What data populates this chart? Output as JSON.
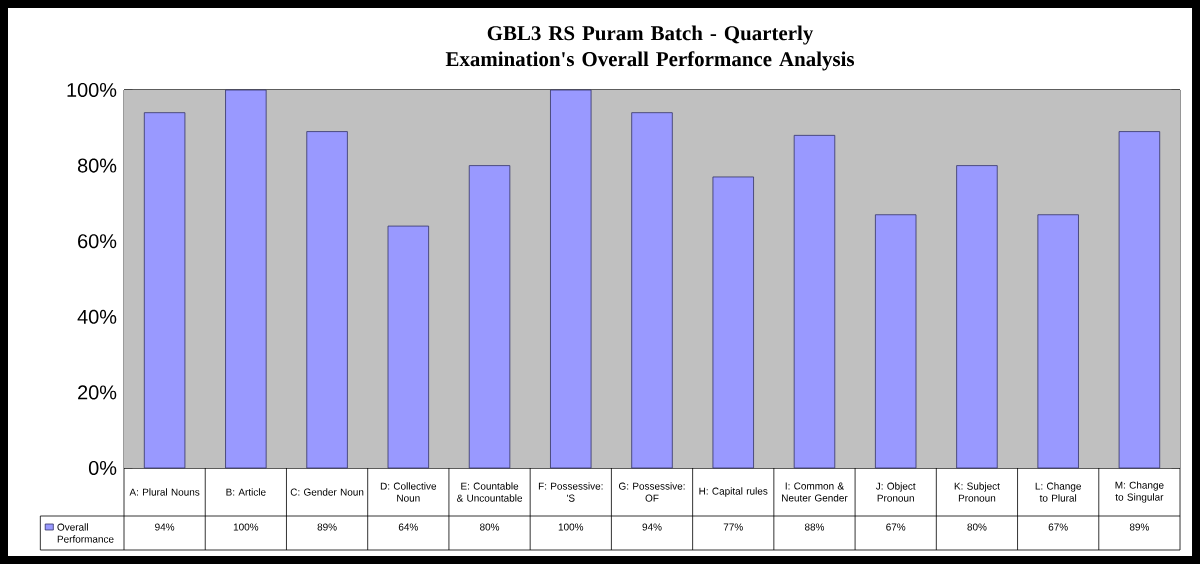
{
  "chart_data": {
    "type": "bar",
    "title": "GBL3 RS Puram Batch - Quarterly Examination's Overall Performance Analysis",
    "categories": [
      "A: Plural Nouns",
      "B: Article",
      "C: Gender Noun",
      "D: Collective Noun",
      "E: Countable & Uncountable",
      "F: Possessive: 'S",
      "G: Possessive: OF",
      "H: Capital rules",
      "I: Common & Neuter Gender",
      "J: Object Pronoun",
      "K: Subject Pronoun",
      "L: Change to Plural",
      "M: Change to Singular"
    ],
    "series": [
      {
        "name": "Overall Performance",
        "color": "#9999ff",
        "values": [
          94,
          100,
          89,
          64,
          80,
          100,
          94,
          77,
          88,
          67,
          80,
          67,
          89
        ],
        "value_labels": [
          "94%",
          "100%",
          "89%",
          "64%",
          "80%",
          "100%",
          "94%",
          "77%",
          "88%",
          "67%",
          "80%",
          "67%",
          "89%"
        ]
      }
    ],
    "ylim": [
      0,
      100
    ],
    "yticks": [
      {
        "value": 0,
        "label": "0%"
      },
      {
        "value": 20,
        "label": "20%"
      },
      {
        "value": 40,
        "label": "40%"
      },
      {
        "value": 60,
        "label": "60%"
      },
      {
        "value": 80,
        "label": "80%"
      },
      {
        "value": 100,
        "label": "100%"
      }
    ],
    "grid": "y",
    "legend": "bottom left"
  }
}
